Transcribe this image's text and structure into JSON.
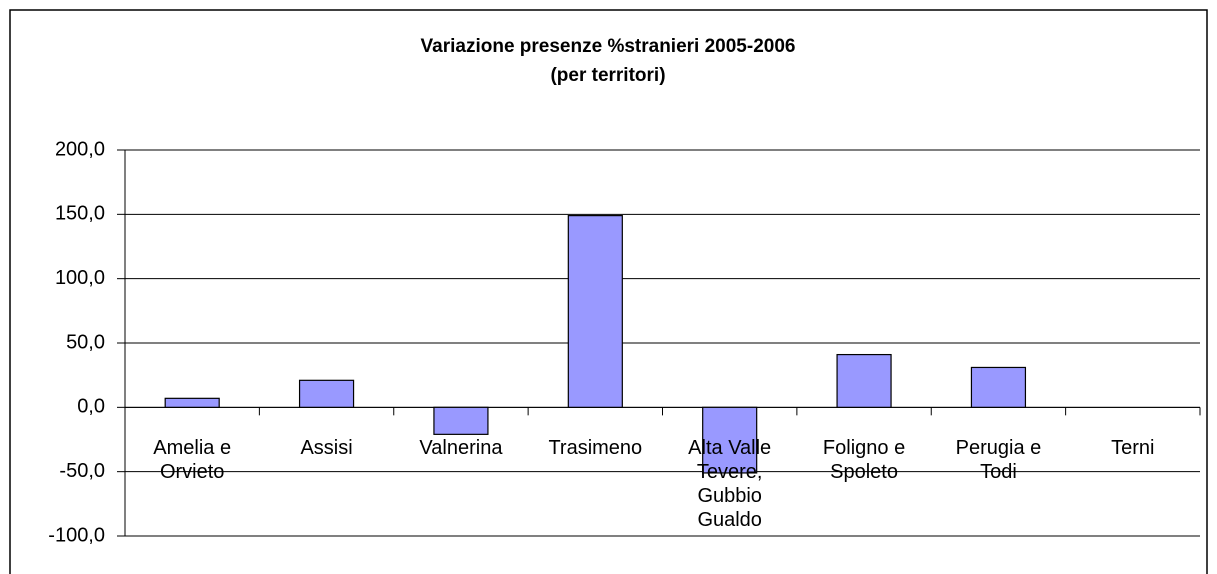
{
  "chart_data": {
    "type": "bar",
    "title": "Variazione presenze %stranieri 2005-2006",
    "subtitle": "(per territori)",
    "categories": [
      "Amelia e Orvieto",
      "Assisi",
      "Valnerina",
      "Trasimeno",
      "Alta Valle Tevere, Gubbio Gualdo",
      "Foligno e Spoleto",
      "Perugia e Todi",
      "Terni"
    ],
    "values": [
      7,
      21,
      -21,
      149,
      -51,
      41,
      31,
      0
    ],
    "color": "#9999ff",
    "ylim": [
      -100,
      200
    ],
    "yticks": [
      {
        "value": -100,
        "label": "-100,0"
      },
      {
        "value": -50,
        "label": "-50,0"
      },
      {
        "value": 0,
        "label": "0,0"
      },
      {
        "value": 50,
        "label": "50,0"
      },
      {
        "value": 100,
        "label": "100,0"
      },
      {
        "value": 150,
        "label": "150,0"
      },
      {
        "value": 200,
        "label": "200,0"
      }
    ],
    "grid": true
  }
}
